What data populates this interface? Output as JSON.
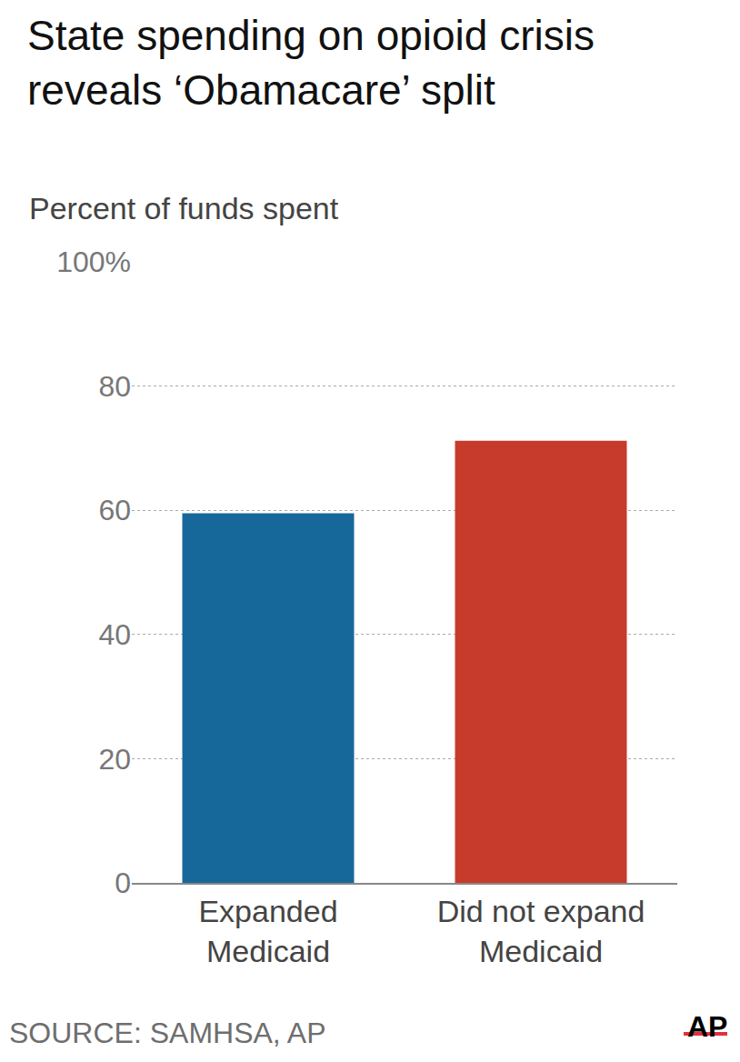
{
  "chart_data": {
    "type": "bar",
    "title": "State spending on opioid crisis\nreveals ‘Obamacare’ split",
    "subtitle": "Percent of funds spent",
    "categories": [
      "Expanded Medicaid",
      "Did not expand Medicaid"
    ],
    "values": [
      59.5,
      71.2
    ],
    "colors": [
      "#17689a",
      "#c63b2b"
    ],
    "ylim": [
      0,
      100
    ],
    "yticks": [
      0,
      20,
      40,
      60,
      80,
      {
        "value": 100,
        "label": "100%"
      }
    ],
    "grid": true,
    "source": "SOURCE: SAMHSA, AP",
    "credit": "AP"
  }
}
